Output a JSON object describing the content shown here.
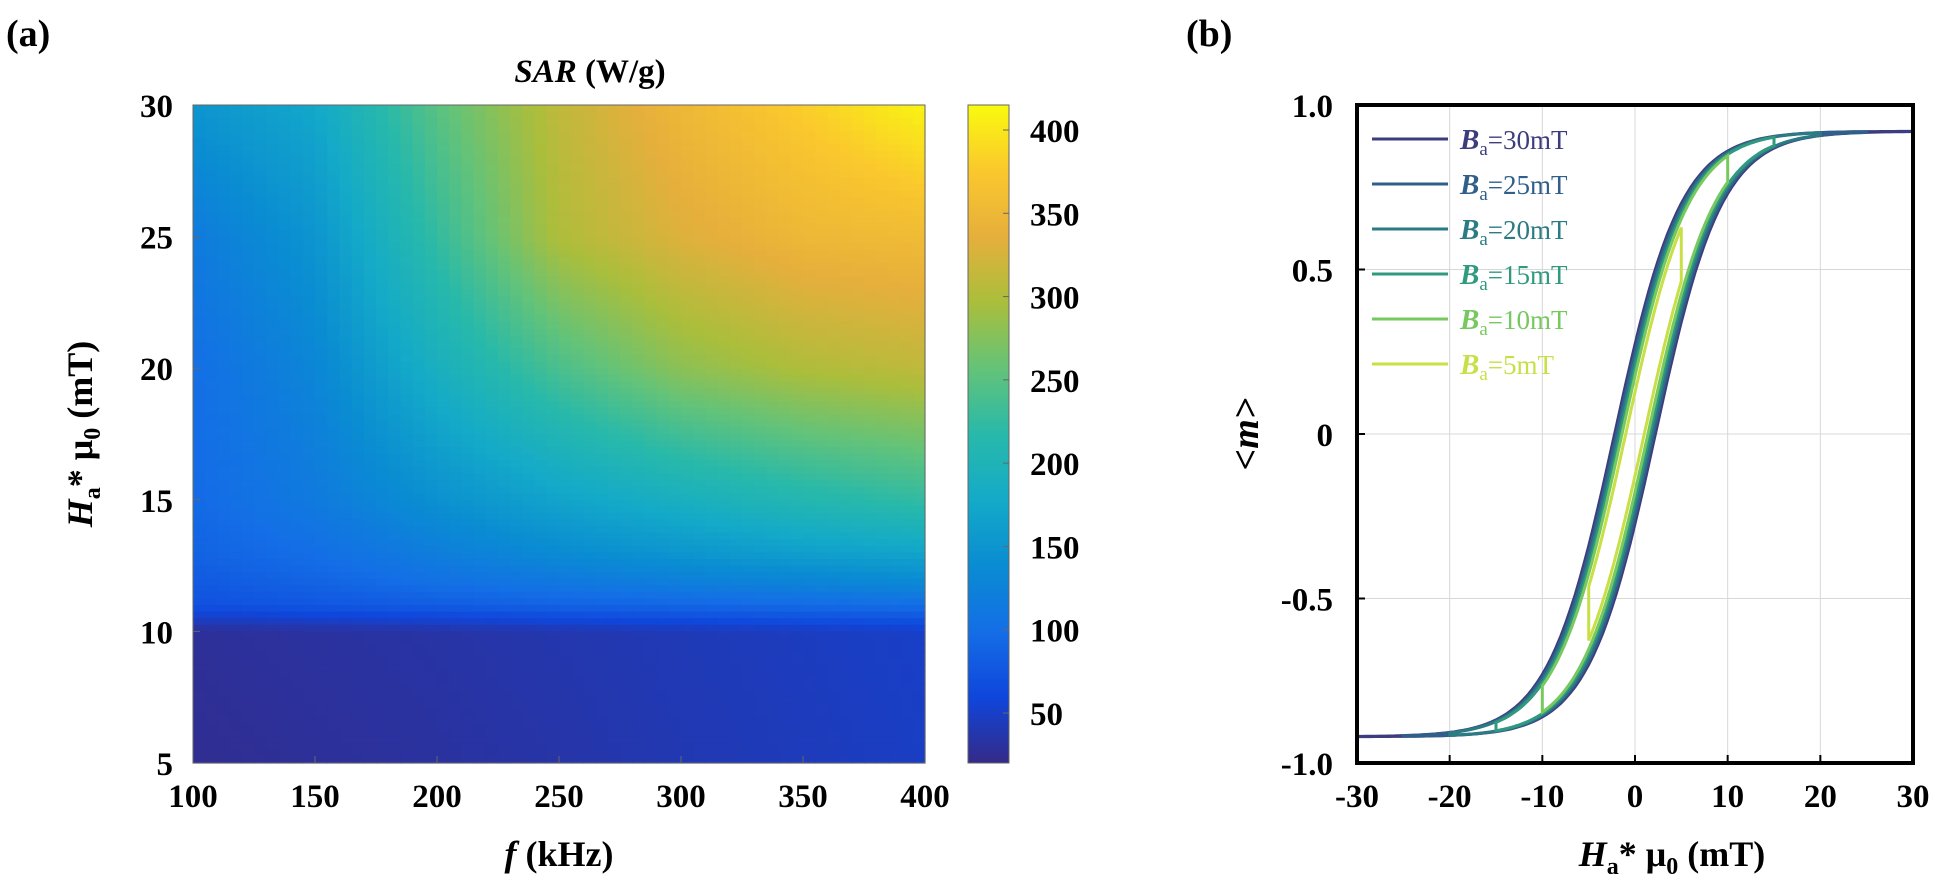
{
  "chart_data": [
    {
      "panel_label": "(a)",
      "type": "heatmap",
      "title_var": "SAR",
      "title_unit": " (W/g)",
      "xlabel_var": "f",
      "xlabel_unit": " (kHz)",
      "ylabel_H": "H",
      "ylabel_sub": "a",
      "ylabel_rest": "* μ",
      "ylabel_sub0": "0",
      "ylabel_unit": " (mT)",
      "xlim": [
        100,
        400
      ],
      "ylim": [
        5,
        30
      ],
      "xticks": [
        100,
        150,
        200,
        250,
        300,
        350,
        400
      ],
      "yticks": [
        5,
        10,
        15,
        20,
        25,
        30
      ],
      "x": [
        100,
        150,
        200,
        250,
        300,
        350,
        400
      ],
      "y": [
        5,
        10,
        11,
        12,
        13,
        15,
        20,
        25,
        30
      ],
      "z": [
        [
          25,
          28,
          31,
          35,
          40,
          44,
          48
        ],
        [
          28,
          31,
          34,
          38,
          42,
          46,
          50
        ],
        [
          70,
          76,
          82,
          88,
          92,
          96,
          100
        ],
        [
          80,
          90,
          105,
          115,
          125,
          132,
          140
        ],
        [
          88,
          100,
          120,
          138,
          152,
          164,
          172
        ],
        [
          95,
          115,
          145,
          170,
          190,
          210,
          225
        ],
        [
          100,
          130,
          190,
          240,
          280,
          300,
          310
        ],
        [
          115,
          150,
          225,
          300,
          330,
          350,
          355
        ],
        [
          150,
          175,
          250,
          310,
          350,
          380,
          410
        ]
      ],
      "colorbar": {
        "min": 20,
        "max": 415,
        "ticks": [
          50,
          100,
          150,
          200,
          250,
          300,
          350,
          400
        ],
        "colormap": "parula"
      }
    },
    {
      "panel_label": "(b)",
      "type": "line",
      "xlabel_H": "H",
      "xlabel_sub": "a",
      "xlabel_rest": "* μ",
      "xlabel_sub0": "0",
      "xlabel_unit": " (mT)",
      "ylabel": "<m>",
      "xlim": [
        -30,
        30
      ],
      "ylim": [
        -1.0,
        1.0
      ],
      "xticks": [
        -30,
        -20,
        -10,
        0,
        10,
        20,
        30
      ],
      "yticks": [
        -1.0,
        -0.5,
        0,
        0.5,
        1.0
      ],
      "ytick_labels": [
        "-1.0",
        "-0.5",
        "0",
        "0.5",
        "1.0"
      ],
      "grid": true,
      "legend_position": "top-left",
      "series": [
        {
          "name_var": "B",
          "name_sub": "a",
          "name_val": "=30mT",
          "amplitude": 30,
          "coercivity": 2.2,
          "color": "#3d3d7e"
        },
        {
          "name_var": "B",
          "name_sub": "a",
          "name_val": "=25mT",
          "amplitude": 25,
          "coercivity": 2.0,
          "color": "#2f5f8a"
        },
        {
          "name_var": "B",
          "name_sub": "a",
          "name_val": "=20mT",
          "amplitude": 20,
          "coercivity": 1.8,
          "color": "#2b7b83"
        },
        {
          "name_var": "B",
          "name_sub": "a",
          "name_val": "=15mT",
          "amplitude": 15,
          "coercivity": 1.6,
          "color": "#2f9a7f"
        },
        {
          "name_var": "B",
          "name_sub": "a",
          "name_val": "=10mT",
          "amplitude": 10,
          "coercivity": 1.4,
          "color": "#76c85f"
        },
        {
          "name_var": "B",
          "name_sub": "a",
          "name_val": "=5mT",
          "amplitude": 5,
          "coercivity": 1.0,
          "color": "#c8df45"
        }
      ]
    }
  ]
}
